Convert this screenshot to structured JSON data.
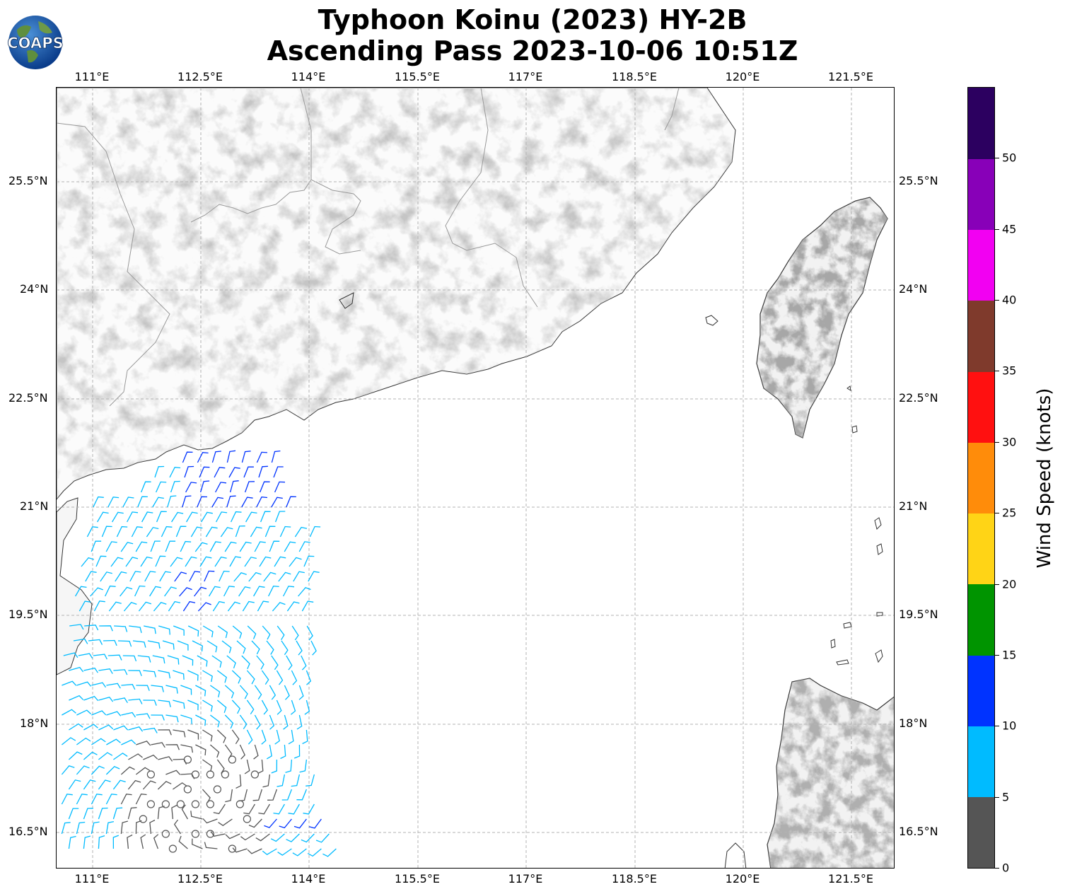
{
  "title": {
    "line1": "Typhoon Koinu (2023) HY-2B",
    "line2": "Ascending Pass 2023-10-06 10:51Z"
  },
  "logo": {
    "text": "COAPS",
    "icon": "globe-logo"
  },
  "map": {
    "lon_labels": [
      "111°E",
      "112.5°E",
      "114°E",
      "115.5°E",
      "117°E",
      "118.5°E",
      "120°E",
      "121.5°E"
    ],
    "lat_labels": [
      "25.5°N",
      "24°N",
      "22.5°N",
      "21°N",
      "19.5°N",
      "18°N",
      "16.5°N"
    ],
    "lon_range": [
      110.5,
      122.1
    ],
    "lat_range": [
      16.0,
      26.8
    ],
    "gridlines": true,
    "terrain": "grayscale elevation shading over land",
    "vectors": "wind barbs colored by speed; calm points shown as circles"
  },
  "colorbar": {
    "title": "Wind Speed (knots)",
    "tick_labels": [
      "0",
      "5",
      "10",
      "15",
      "20",
      "25",
      "30",
      "35",
      "40",
      "45",
      "50"
    ],
    "segments": [
      {
        "from": 0,
        "to": 5,
        "color": "#555555"
      },
      {
        "from": 5,
        "to": 10,
        "color": "#00bbff"
      },
      {
        "from": 10,
        "to": 15,
        "color": "#0033ff"
      },
      {
        "from": 15,
        "to": 20,
        "color": "#009400"
      },
      {
        "from": 20,
        "to": 25,
        "color": "#ffd416"
      },
      {
        "from": 25,
        "to": 30,
        "color": "#ff8c0a"
      },
      {
        "from": 30,
        "to": 35,
        "color": "#ff1010"
      },
      {
        "from": 35,
        "to": 40,
        "color": "#7f3a2c"
      },
      {
        "from": 40,
        "to": 45,
        "color": "#f200f2"
      },
      {
        "from": 45,
        "to": 50,
        "color": "#8800b8"
      },
      {
        "from": 50,
        "to": 55,
        "color": "#2c0060"
      }
    ]
  }
}
